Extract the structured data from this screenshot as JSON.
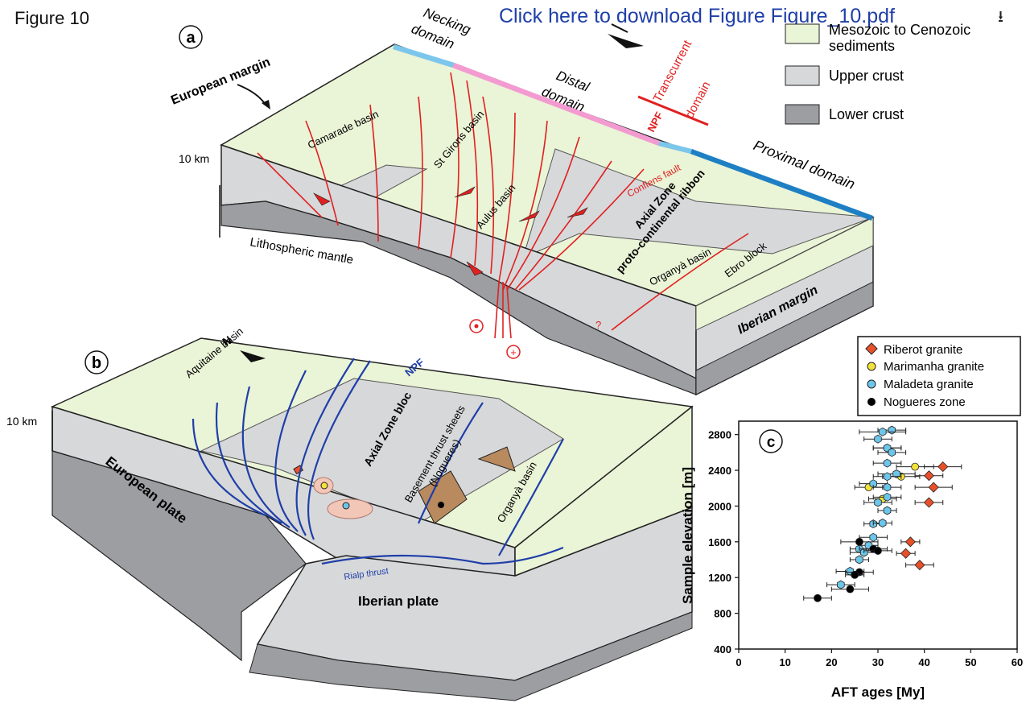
{
  "header": {
    "figure_label": "Figure 10",
    "download_link": "Click here to download Figure Figure_10.pdf",
    "download_icon": "download-icon"
  },
  "legend_top": [
    {
      "label_line1": "Mesozoic to Cenozoic",
      "label_line2": "sediments",
      "color": "#eaf4d6"
    },
    {
      "label_line1": "Upper crust",
      "label_line2": "",
      "color": "#d7d8da"
    },
    {
      "label_line1": "Lower crust",
      "label_line2": "",
      "color": "#9d9ea2"
    }
  ],
  "panel_a": {
    "marker": "a",
    "european_margin": "European margin",
    "necking_domain": [
      "Necking",
      "domain"
    ],
    "distal_domain": [
      "Distal",
      "domain"
    ],
    "transcurrent_domain": [
      "Transcurrent",
      "domain"
    ],
    "npf": "NPF",
    "proximal_domain": "Proximal domain",
    "depth_label": "10 km",
    "camarade_basin": "Camarade basin",
    "st_girons_basin": "St Girons basin",
    "aulus_basin": "Aulus basin",
    "conflens_fault": "Conflens fault",
    "axial_zone": [
      "Axial Zone",
      "proto-continental ribbon"
    ],
    "organya_basin": "Organyà basin",
    "ebro_block": "Ebro block",
    "iberian_margin": "Iberian margin",
    "lithospheric_mantle": "Lithospheric mantle",
    "question_mark": "?"
  },
  "panel_b": {
    "marker": "b",
    "north": "N",
    "aquitaine_basin": "Aquitaine basin",
    "npf": "NPF",
    "axial_zone_bloc": "Axial Zone bloc",
    "basement_thrust": [
      "Basement thrust sheets",
      "(Nogueres)"
    ],
    "depth_label": "10 km",
    "european_plate": "European plate",
    "organya_basin": "Organyà basin",
    "rialp_thrust": "Rialp thrust",
    "iberian_plate": "Iberian plate"
  },
  "chart_data": {
    "type": "scatter",
    "marker_label": "c",
    "xlabel": "AFT ages [My]",
    "ylabel": "Sample elevation [m]",
    "xlim": [
      0,
      60
    ],
    "ylim": [
      400,
      2950
    ],
    "xticks": [
      0,
      10,
      20,
      30,
      40,
      50,
      60
    ],
    "yticks": [
      400,
      800,
      1200,
      1600,
      2000,
      2400,
      2800
    ],
    "legend_position": "top",
    "series": [
      {
        "name": "Riberot granite",
        "marker": "diamond",
        "color": "#e8502a",
        "points": [
          [
            44,
            2440,
            4
          ],
          [
            41,
            2340,
            3
          ],
          [
            42,
            2210,
            4
          ],
          [
            41,
            2040,
            3
          ],
          [
            37,
            1600,
            2
          ],
          [
            36,
            1470,
            2
          ],
          [
            39,
            1340,
            3
          ]
        ]
      },
      {
        "name": "Marimanha granite",
        "marker": "circle",
        "color": "#f2e33a",
        "points": [
          [
            32,
            2650,
            3
          ],
          [
            38,
            2440,
            4
          ],
          [
            35,
            2330,
            4
          ],
          [
            28,
            2210,
            3
          ],
          [
            31,
            2080,
            3
          ]
        ]
      },
      {
        "name": "Maladeta granite",
        "marker": "hexagon",
        "color": "#6cc6ea",
        "points": [
          [
            33,
            2850,
            3
          ],
          [
            31,
            2830,
            5
          ],
          [
            30,
            2750,
            3
          ],
          [
            32,
            2650,
            3
          ],
          [
            33,
            2600,
            3
          ],
          [
            32,
            2480,
            3
          ],
          [
            34,
            2360,
            4
          ],
          [
            32,
            2330,
            3
          ],
          [
            29,
            2250,
            3
          ],
          [
            32,
            2210,
            3
          ],
          [
            32,
            2100,
            3
          ],
          [
            30,
            2040,
            3
          ],
          [
            32,
            1950,
            2
          ],
          [
            29,
            1800,
            2
          ],
          [
            31,
            1810,
            2
          ],
          [
            29,
            1650,
            3
          ],
          [
            26,
            1520,
            2
          ],
          [
            28,
            1560,
            2
          ],
          [
            26,
            1400,
            2
          ],
          [
            27,
            1480,
            3
          ],
          [
            24,
            1270,
            3
          ],
          [
            22,
            1120,
            3
          ]
        ]
      },
      {
        "name": "Nogueres zone",
        "marker": "circle",
        "color": "#000000",
        "points": [
          [
            26,
            1600,
            4
          ],
          [
            29,
            1520,
            3
          ],
          [
            30,
            1500,
            3
          ],
          [
            26,
            1260,
            3
          ],
          [
            25,
            1230,
            2
          ],
          [
            24,
            1070,
            4
          ],
          [
            17,
            970,
            3
          ]
        ]
      }
    ]
  }
}
